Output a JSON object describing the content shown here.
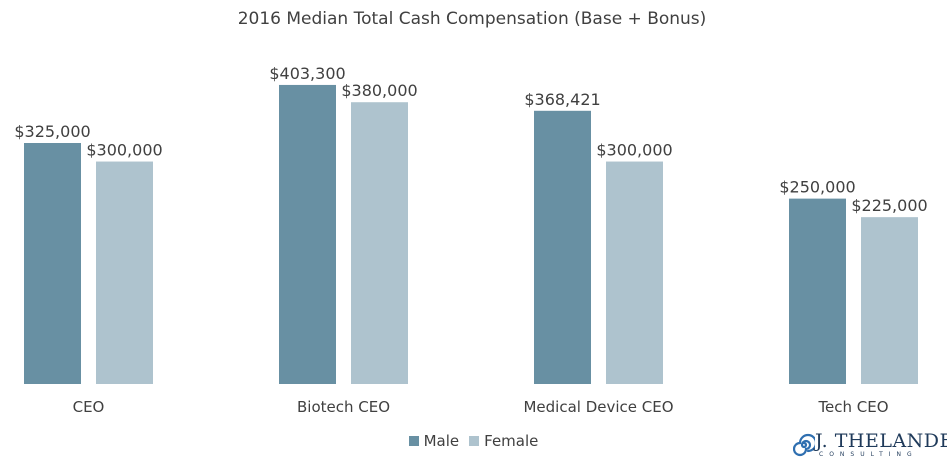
{
  "chart_data": {
    "type": "bar",
    "title": "2016 Median Total Cash Compensation (Base + Bonus)",
    "categories": [
      "CEO",
      "Biotech CEO",
      "Medical Device CEO",
      "Tech CEO"
    ],
    "series": [
      {
        "name": "Male",
        "color": "#6890a3",
        "values": [
          325000,
          403300,
          368421,
          250000
        ],
        "labels": [
          "$325,000",
          "$403,300",
          "$368,421",
          "$250,000"
        ]
      },
      {
        "name": "Female",
        "color": "#aec3ce",
        "values": [
          300000,
          380000,
          300000,
          225000
        ],
        "labels": [
          "$300,000",
          "$380,000",
          "$300,000",
          "$225,000"
        ]
      }
    ],
    "ylim": [
      0,
      440000
    ],
    "grid": false,
    "legend_position": "bottom"
  },
  "logo": {
    "name": "J. THELANDER",
    "sub": "CONSULTING",
    "color": "#1f3a5a",
    "accent": "#2f6fb0"
  }
}
